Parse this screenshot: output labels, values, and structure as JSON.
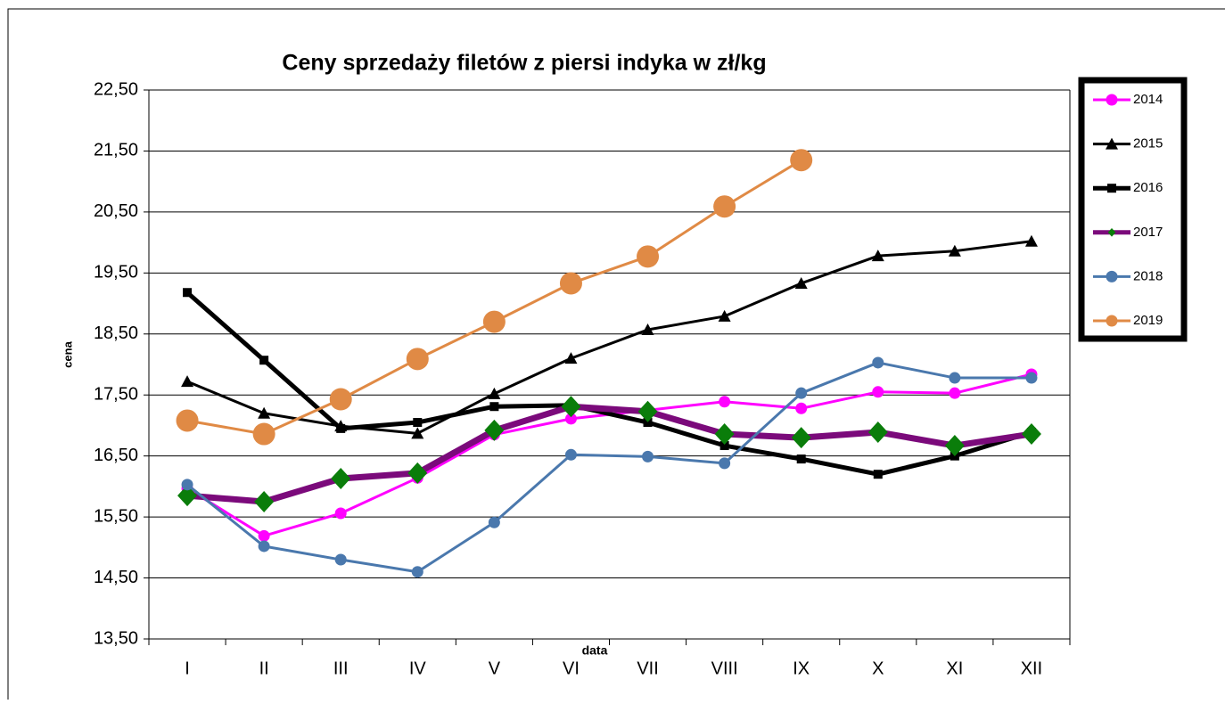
{
  "chart_data": {
    "type": "line",
    "title": "Ceny sprzedaży filetów z  piersi indyka w zł/kg",
    "y_label": "cena",
    "x_label": "data",
    "categories": [
      "I",
      "II",
      "III",
      "IV",
      "V",
      "VI",
      "VII",
      "VIII",
      "IX",
      "X",
      "XI",
      "XII"
    ],
    "ylim": [
      13.5,
      22.5
    ],
    "yticks": [
      {
        "value": 13.5,
        "label": "13,50"
      },
      {
        "value": 14.5,
        "label": "14,50"
      },
      {
        "value": 15.5,
        "label": "15,50"
      },
      {
        "value": 16.5,
        "label": "16,50"
      },
      {
        "value": 17.5,
        "label": "17,50"
      },
      {
        "value": 18.5,
        "label": "18,50"
      },
      {
        "value": 19.5,
        "label": "19,50"
      },
      {
        "value": 20.5,
        "label": "20,50"
      },
      {
        "value": 21.5,
        "label": "21,50"
      },
      {
        "value": 22.5,
        "label": "22,50"
      }
    ],
    "grid": true,
    "legend": "right",
    "series": [
      {
        "name": "2014",
        "color": "#ff00ff",
        "marker": "circle",
        "values": [
          15.97,
          15.19,
          15.56,
          16.14,
          16.85,
          17.11,
          17.25,
          17.39,
          17.28,
          17.55,
          17.53,
          17.84
        ]
      },
      {
        "name": "2015",
        "color": "#000000",
        "marker": "triangle",
        "values": [
          17.72,
          17.2,
          16.99,
          16.87,
          17.52,
          18.1,
          18.57,
          18.79,
          19.33,
          19.78,
          19.86,
          20.02
        ]
      },
      {
        "name": "2016",
        "color": "#000000",
        "marker": "square",
        "values": [
          19.18,
          18.07,
          16.95,
          17.05,
          17.31,
          17.33,
          17.05,
          16.67,
          16.45,
          16.2,
          16.5,
          16.89
        ]
      },
      {
        "name": "2017",
        "color": "#7b0a7b",
        "marker": "diamond",
        "marker_color": "#0a7d0a",
        "values": [
          15.85,
          15.75,
          16.13,
          16.22,
          16.92,
          17.31,
          17.23,
          16.86,
          16.8,
          16.89,
          16.67,
          16.86
        ]
      },
      {
        "name": "2018",
        "color": "#4a78ad",
        "marker": "circle",
        "values": [
          16.03,
          15.02,
          14.8,
          14.6,
          15.41,
          16.52,
          16.49,
          16.38,
          17.53,
          18.03,
          17.78,
          17.78
        ]
      },
      {
        "name": "2019",
        "color": "#e08a45",
        "marker": "bigcircle",
        "values": [
          17.08,
          16.86,
          17.43,
          18.09,
          18.7,
          19.33,
          19.77,
          20.59,
          21.35,
          null,
          null,
          null
        ]
      }
    ]
  }
}
